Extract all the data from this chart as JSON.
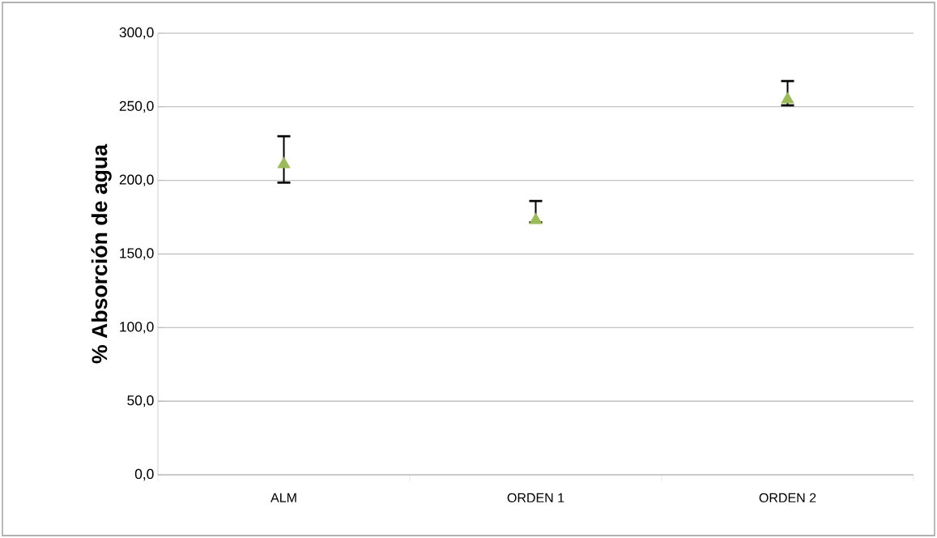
{
  "chart_data": {
    "type": "scatter",
    "ylabel": "% Absorción de agua",
    "categories": [
      "ALM",
      "ORDEN 1",
      "ORDEN 2"
    ],
    "series": [
      {
        "color": "#9bbb59",
        "values": [
          211,
          173,
          255
        ],
        "errors": [
          [
            198.5,
            230
          ],
          [
            171.5,
            186
          ],
          [
            251,
            267.5
          ]
        ]
      }
    ],
    "marker": "triangle",
    "grid": "y",
    "ylim": [
      0,
      300
    ],
    "yticks": [
      {
        "value": 0,
        "label": "0,0"
      },
      {
        "value": 50,
        "label": "50,0"
      },
      {
        "value": 100,
        "label": "100,0"
      },
      {
        "value": 150,
        "label": "150,0"
      },
      {
        "value": 200,
        "label": "200,0"
      },
      {
        "value": 250,
        "label": "250,0"
      },
      {
        "value": 300,
        "label": "300,0"
      }
    ]
  }
}
